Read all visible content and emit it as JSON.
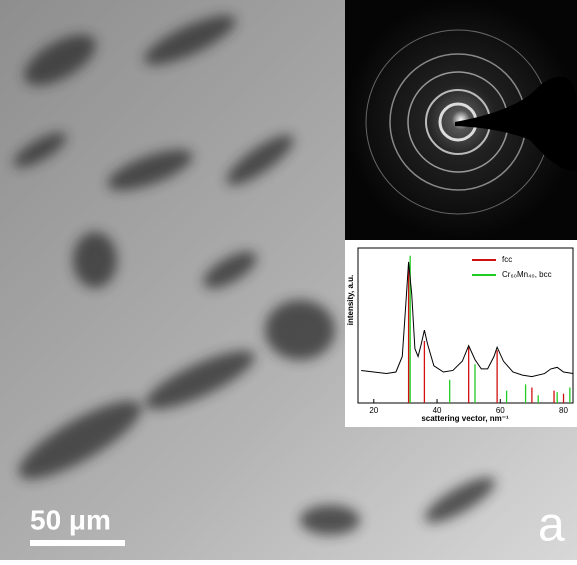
{
  "scale_bar": "50 μm",
  "panel_label": "a",
  "chart_data": {
    "type": "line",
    "x_label": "scattering vector, nm⁻¹",
    "y_label": "intensity, a.u.",
    "xlim": [
      15,
      83
    ],
    "xticks": [
      20,
      40,
      60,
      80
    ],
    "ylim": [
      0,
      1
    ],
    "profile": {
      "color": "#000000",
      "x": [
        16,
        20,
        24,
        27,
        29,
        30,
        31,
        32,
        33,
        34,
        35,
        36,
        37,
        39,
        42,
        45,
        48,
        50,
        52,
        54,
        56,
        58,
        59,
        61,
        64,
        67,
        70,
        74,
        76,
        78,
        80,
        83
      ],
      "values": [
        0.21,
        0.2,
        0.19,
        0.2,
        0.3,
        0.6,
        0.91,
        0.7,
        0.35,
        0.3,
        0.38,
        0.47,
        0.38,
        0.24,
        0.2,
        0.21,
        0.27,
        0.37,
        0.28,
        0.22,
        0.22,
        0.3,
        0.36,
        0.27,
        0.2,
        0.18,
        0.17,
        0.19,
        0.22,
        0.23,
        0.2,
        0.19
      ]
    },
    "series": [
      {
        "name": "fcc",
        "color": "#d01010",
        "style": "stick",
        "x": [
          31,
          36,
          50,
          59,
          70,
          77,
          80
        ],
        "values": [
          0.88,
          0.4,
          0.36,
          0.34,
          0.1,
          0.08,
          0.06
        ]
      },
      {
        "name": "Cr₆₀Mn₄₀, bcc",
        "color": "#22cc22",
        "style": "stick",
        "x": [
          31.5,
          44,
          52,
          62,
          68,
          72,
          78,
          82
        ],
        "values": [
          0.95,
          0.15,
          0.25,
          0.08,
          0.12,
          0.05,
          0.07,
          0.1
        ]
      }
    ]
  }
}
